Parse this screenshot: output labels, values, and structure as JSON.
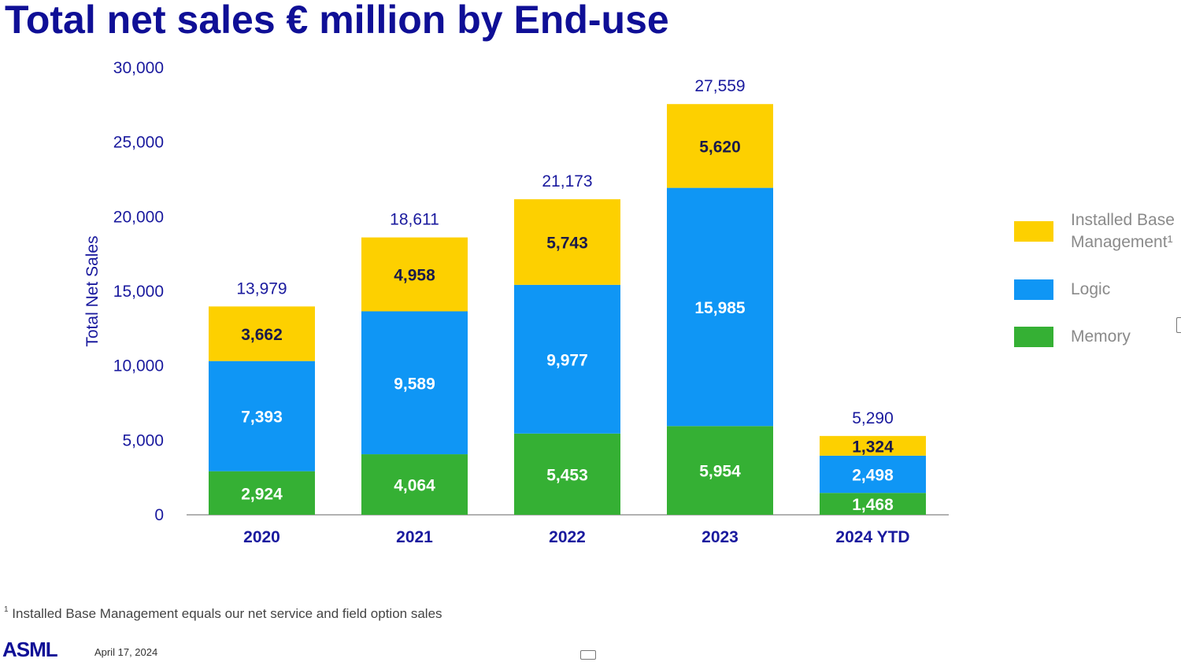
{
  "title": "Total net sales € million by End-use",
  "chart_data": {
    "type": "bar",
    "stacked": true,
    "categories": [
      "2020",
      "2021",
      "2022",
      "2023",
      "2024 YTD"
    ],
    "series": [
      {
        "name": "Memory",
        "color": "#35b034",
        "values": [
          2924,
          4064,
          5453,
          5954,
          1468
        ]
      },
      {
        "name": "Logic",
        "color": "#0f96f5",
        "values": [
          7393,
          9589,
          9977,
          15985,
          2498
        ]
      },
      {
        "name": "Installed Base Management¹",
        "color": "#fdd000",
        "values": [
          3662,
          4958,
          5743,
          5620,
          1324
        ]
      }
    ],
    "totals": [
      13979,
      18611,
      21173,
      27559,
      5290
    ],
    "value_labels": [
      [
        "2,924",
        "4,064",
        "5,453",
        "5,954",
        "1,468"
      ],
      [
        "7,393",
        "9,589",
        "9,977",
        "15,985",
        "2,498"
      ],
      [
        "3,662",
        "4,958",
        "5,743",
        "5,620",
        "1,324"
      ]
    ],
    "total_labels": [
      "13,979",
      "18,611",
      "21,173",
      "27,559",
      "5,290"
    ],
    "ylabel": "Total Net Sales",
    "ylim": [
      0,
      30000
    ],
    "yticks": [
      0,
      5000,
      10000,
      15000,
      20000,
      25000,
      30000
    ],
    "ytick_labels": [
      "0",
      "5,000",
      "10,000",
      "15,000",
      "20,000",
      "25,000",
      "30,000"
    ],
    "grid": false,
    "legend_position": "right",
    "legend_order": [
      "Installed Base Management¹",
      "Logic",
      "Memory"
    ]
  },
  "legend": {
    "items": [
      {
        "label": "Installed Base Management¹",
        "color": "#fdd000"
      },
      {
        "label": "Logic",
        "color": "#0f96f5"
      },
      {
        "label": "Memory",
        "color": "#35b034"
      }
    ]
  },
  "footnote": {
    "marker": "1",
    "text": "Installed Base Management equals our net service and field option sales"
  },
  "footer": {
    "logo": "ASML",
    "date": "April 17, 2024"
  }
}
